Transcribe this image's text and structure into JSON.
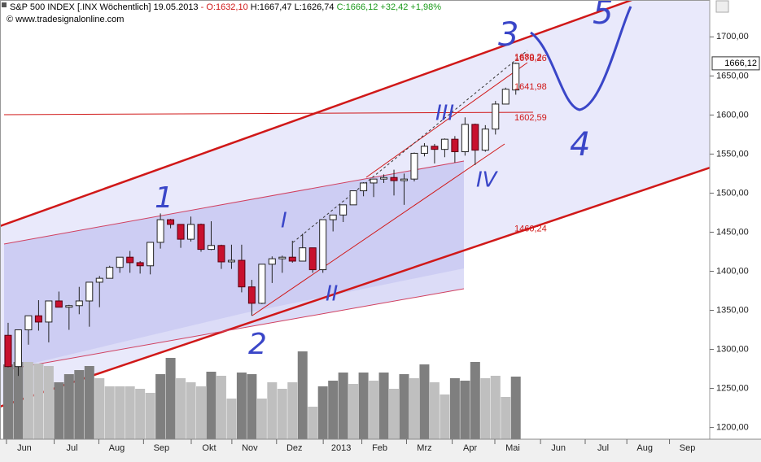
{
  "header": {
    "symbol": "S&P 500 INDEX [.INX Wöchentlich]",
    "date": "19.05.2013",
    "open": "- O:1632,10",
    "high": "H:1667,47",
    "low": "L:1626,74",
    "close": "C:1666,12 +32,42 +1,98%",
    "source": "© www.tradesignalonline.com"
  },
  "chart_data": {
    "type": "candlestick",
    "ylim": [
      1185,
      1742
    ],
    "yticks": [
      {
        "value": 1200,
        "label": "1200,00"
      },
      {
        "value": 1250,
        "label": "1250,00"
      },
      {
        "value": 1300,
        "label": "1300,00"
      },
      {
        "value": 1350,
        "label": "1350,00"
      },
      {
        "value": 1400,
        "label": "1400,00"
      },
      {
        "value": 1450,
        "label": "1450,00"
      },
      {
        "value": 1500,
        "label": "1500,00"
      },
      {
        "value": 1550,
        "label": "1550,00"
      },
      {
        "value": 1600,
        "label": "1600,00"
      },
      {
        "value": 1650,
        "label": "1650,00"
      },
      {
        "value": 1700,
        "label": "1700,00"
      }
    ],
    "xlim": [
      -0.8,
      69.1
    ],
    "xticks": [
      {
        "value": 1.6,
        "label": "Jun"
      },
      {
        "value": 6.3,
        "label": "Jul"
      },
      {
        "value": 10.7,
        "label": "Aug"
      },
      {
        "value": 15.1,
        "label": "Sep"
      },
      {
        "value": 19.8,
        "label": "Okt"
      },
      {
        "value": 23.8,
        "label": "Nov"
      },
      {
        "value": 28.2,
        "label": "Dez"
      },
      {
        "value": 32.8,
        "label": "2013"
      },
      {
        "value": 36.6,
        "label": "Feb"
      },
      {
        "value": 41.0,
        "label": "Mrz"
      },
      {
        "value": 45.5,
        "label": "Apr"
      },
      {
        "value": 49.7,
        "label": "Mai"
      },
      {
        "value": 54.2,
        "label": "Jun"
      },
      {
        "value": 58.6,
        "label": "Jul"
      },
      {
        "value": 62.7,
        "label": "Aug"
      },
      {
        "value": 66.9,
        "label": "Sep"
      }
    ],
    "up_color": "#ffffff",
    "down_color": "#c8102e",
    "open": [
      1318,
      1278,
      1325,
      1343,
      1335,
      1362,
      1354,
      1356,
      1362,
      1386,
      1391,
      1405,
      1418,
      1411,
      1407,
      1437,
      1466,
      1460,
      1441,
      1460,
      1428,
      1433,
      1412,
      1414,
      1380,
      1359,
      1409,
      1416,
      1418,
      1413,
      1430,
      1402,
      1466,
      1472,
      1485,
      1503,
      1513,
      1518,
      1520,
      1516,
      1518,
      1551,
      1560,
      1556,
      1569,
      1553,
      1588,
      1555,
      1582,
      1614,
      1632
    ],
    "high": [
      1334,
      1325,
      1343,
      1363,
      1362,
      1374,
      1357,
      1380,
      1386,
      1394,
      1407,
      1418,
      1426,
      1413,
      1437,
      1474,
      1467,
      1460,
      1470,
      1461,
      1464,
      1434,
      1434,
      1434,
      1389,
      1409,
      1419,
      1420,
      1439,
      1448,
      1430,
      1466,
      1472,
      1485,
      1503,
      1514,
      1518,
      1524,
      1530,
      1525,
      1552,
      1564,
      1563,
      1570,
      1573,
      1597,
      1589,
      1587,
      1618,
      1635,
      1667
    ],
    "low": [
      1277,
      1266,
      1306,
      1324,
      1309,
      1354,
      1325,
      1345,
      1329,
      1354,
      1391,
      1398,
      1398,
      1397,
      1396,
      1429,
      1455,
      1430,
      1438,
      1425,
      1427,
      1403,
      1403,
      1373,
      1343,
      1358,
      1385,
      1398,
      1411,
      1413,
      1398,
      1398,
      1451,
      1463,
      1485,
      1496,
      1495,
      1513,
      1497,
      1485,
      1515,
      1547,
      1538,
      1546,
      1539,
      1548,
      1536,
      1553,
      1575,
      1614,
      1626
    ],
    "close": [
      1278,
      1325,
      1343,
      1335,
      1362,
      1354,
      1356,
      1362,
      1386,
      1391,
      1405,
      1418,
      1411,
      1407,
      1437,
      1466,
      1460,
      1441,
      1460,
      1428,
      1433,
      1412,
      1414,
      1380,
      1359,
      1409,
      1416,
      1418,
      1413,
      1430,
      1402,
      1466,
      1472,
      1485,
      1503,
      1513,
      1518,
      1520,
      1516,
      1518,
      1551,
      1560,
      1556,
      1569,
      1553,
      1588,
      1555,
      1582,
      1614,
      1633,
      1666
    ],
    "volume": {
      "values": [
        92,
        95,
        95,
        93,
        90,
        70,
        80,
        85,
        90,
        75,
        65,
        65,
        65,
        62,
        57,
        80,
        100,
        75,
        70,
        65,
        83,
        78,
        50,
        82,
        80,
        50,
        70,
        62,
        70,
        108,
        40,
        65,
        72,
        82,
        68,
        82,
        72,
        82,
        62,
        80,
        75,
        92,
        70,
        55,
        75,
        72,
        95,
        75,
        78,
        52,
        77
      ],
      "colors": [
        "#7f7f7f",
        "#7f7f7f",
        "#bfbfbf",
        "#bfbfbf",
        "#bfbfbf",
        "#7f7f7f",
        "#7f7f7f",
        "#7f7f7f",
        "#7f7f7f",
        "#bfbfbf",
        "#bfbfbf",
        "#bfbfbf",
        "#bfbfbf",
        "#bfbfbf",
        "#bfbfbf",
        "#7f7f7f",
        "#7f7f7f",
        "#bfbfbf",
        "#bfbfbf",
        "#bfbfbf",
        "#7f7f7f",
        "#bfbfbf",
        "#bfbfbf",
        "#7f7f7f",
        "#7f7f7f",
        "#bfbfbf",
        "#bfbfbf",
        "#bfbfbf",
        "#bfbfbf",
        "#7f7f7f",
        "#bfbfbf",
        "#7f7f7f",
        "#7f7f7f",
        "#7f7f7f",
        "#bfbfbf",
        "#7f7f7f",
        "#bfbfbf",
        "#7f7f7f",
        "#bfbfbf",
        "#7f7f7f",
        "#bfbfbf",
        "#7f7f7f",
        "#bfbfbf",
        "#bfbfbf",
        "#7f7f7f",
        "#7f7f7f",
        "#7f7f7f",
        "#bfbfbf",
        "#bfbfbf",
        "#bfbfbf",
        "#7f7f7f"
      ]
    },
    "levels": [
      {
        "value": 1680.2,
        "label": "1680,2"
      },
      {
        "value": 1678.26,
        "label": "1678,26"
      },
      {
        "value": 1641.98,
        "label": "1641,98"
      },
      {
        "value": 1602.59,
        "label": "1602,59"
      },
      {
        "value": 1460.24,
        "label": "1460,24"
      }
    ],
    "last_price": {
      "value": 1666.12,
      "label": "1666,12"
    },
    "annotations": [
      "1",
      "2",
      "3",
      "4",
      "5",
      "I",
      "II",
      "III",
      "IV"
    ]
  }
}
